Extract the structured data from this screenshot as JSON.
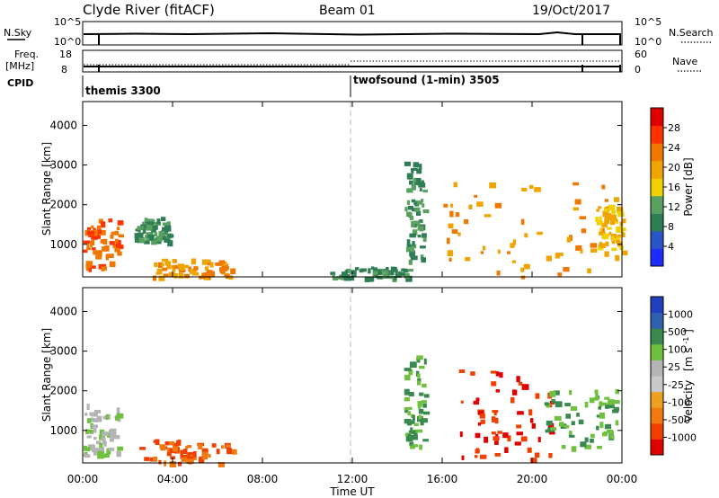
{
  "header": {
    "station": "Clyde River (fitACF)",
    "beam": "Beam 01",
    "date": "19/Oct/2017"
  },
  "noise_panel": {
    "left_label": "N.Sky",
    "right_label": "N.Search",
    "left_ticks": [
      "10^5",
      "10^0"
    ],
    "right_ticks": [
      "10^5",
      "10^0"
    ]
  },
  "freq_panel": {
    "left_label_line1": "Freq.",
    "left_label_line2": "[MHz]",
    "right_label": "Nave",
    "left_ticks": [
      "18",
      "8"
    ],
    "right_ticks": [
      "60",
      "0"
    ]
  },
  "cpid": {
    "label": "CPID",
    "modes": [
      {
        "name": "themis 3300",
        "start_hour": 0
      },
      {
        "name": "twofsound (1-min) 3505",
        "start_hour": 12
      }
    ]
  },
  "colors": {
    "power_bar": [
      "#1e2cff",
      "#2a55c8",
      "#2f7d55",
      "#5aa060",
      "#f0d000",
      "#f0a400",
      "#f07800",
      "#ff3300",
      "#e00000"
    ],
    "velocity_bar": [
      "#e00000",
      "#f04000",
      "#f07a10",
      "#f0a020",
      "#c8c8c8",
      "#b4b4b4",
      "#70c040",
      "#3a8a50",
      "#3060b0",
      "#2040c0"
    ]
  },
  "power_legend": {
    "label": "Power [dB]",
    "ticks": [
      "4",
      "8",
      "12",
      "16",
      "20",
      "24",
      "28"
    ]
  },
  "velocity_legend": {
    "label": "Velocity",
    "unit": "[m s",
    "unit_sup": "-1",
    "unit_end": "]",
    "ticks": [
      "1000",
      "500",
      "100",
      "25",
      "-25",
      "-100",
      "-500",
      "-1000"
    ]
  },
  "chart_data": [
    {
      "type": "heatmap",
      "name": "power",
      "ylabel": "Slant Range [km]",
      "ylim": [
        180,
        4600
      ],
      "xlim": [
        0,
        24
      ],
      "y_ticks": [
        "1000",
        "2000",
        "3000",
        "4000"
      ],
      "x_ticks": [
        "00:00",
        "04:00",
        "08:00",
        "12:00",
        "16:00",
        "20:00",
        "00:00"
      ],
      "regions": [
        {
          "t0": 0.0,
          "t1": 1.6,
          "r0": 400,
          "r1": 1700,
          "level": 28
        },
        {
          "t0": 2.3,
          "t1": 3.8,
          "r0": 1100,
          "r1": 1700,
          "level": 12
        },
        {
          "t0": 3.0,
          "t1": 6.6,
          "r0": 200,
          "r1": 650,
          "level": 24
        },
        {
          "t0": 11.0,
          "t1": 14.5,
          "r0": 180,
          "r1": 450,
          "level": 12
        },
        {
          "t0": 14.3,
          "t1": 15.2,
          "r0": 600,
          "r1": 3100,
          "level": 12
        },
        {
          "t0": 16.0,
          "t1": 23.7,
          "r0": 200,
          "r1": 2600,
          "level": 24
        },
        {
          "t0": 22.8,
          "t1": 24.0,
          "r0": 800,
          "r1": 2000,
          "level": 20
        }
      ]
    },
    {
      "type": "heatmap",
      "name": "velocity",
      "ylabel": "Slant Range [km]",
      "xlabel": "Time UT",
      "ylim": [
        180,
        4600
      ],
      "xlim": [
        0,
        24
      ],
      "y_ticks": [
        "1000",
        "2000",
        "3000",
        "4000"
      ],
      "x_ticks": [
        "00:00",
        "04:00",
        "08:00",
        "12:00",
        "16:00",
        "20:00",
        "00:00"
      ],
      "regions": [
        {
          "t0": 0.0,
          "t1": 1.6,
          "r0": 400,
          "r1": 1700,
          "level": 100
        },
        {
          "t0": 2.5,
          "t1": 6.8,
          "r0": 200,
          "r1": 800,
          "level": -100
        },
        {
          "t0": 14.3,
          "t1": 15.2,
          "r0": 600,
          "r1": 3100,
          "level": 500
        },
        {
          "t0": 16.6,
          "t1": 21.0,
          "r0": 300,
          "r1": 2600,
          "level": -500
        },
        {
          "t0": 20.5,
          "t1": 23.8,
          "r0": 600,
          "r1": 2100,
          "level": 500
        }
      ]
    }
  ]
}
